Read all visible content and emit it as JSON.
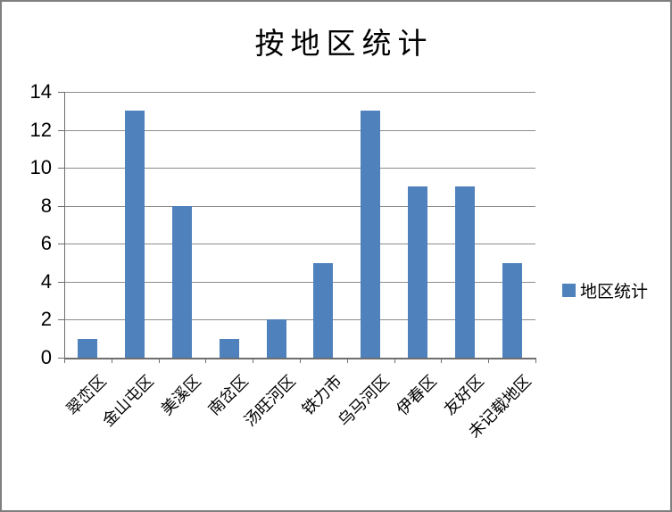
{
  "frame": {
    "background": "#FFFFFF",
    "border_color": "#7F7F7F"
  },
  "chart_data": {
    "type": "bar",
    "title": "按地区统计",
    "categories": [
      "翠峦区",
      "金山屯区",
      "美溪区",
      "南岔区",
      "汤旺河区",
      "铁力市",
      "乌马河区",
      "伊春区",
      "友好区",
      "未记载地区"
    ],
    "series": [
      {
        "name": "地区统计",
        "values": [
          1,
          13,
          8,
          1,
          2,
          5,
          13,
          9,
          9,
          5
        ]
      }
    ],
    "xlabel": "",
    "ylabel": "",
    "ylim": [
      0,
      14
    ],
    "yticks": [
      0,
      2,
      4,
      6,
      8,
      10,
      12,
      14
    ],
    "grid": "horizontal",
    "legend_position": "right",
    "x_label_rotation_deg": 45,
    "colors": {
      "bar": "#4F81BD",
      "gridline": "#8C8C8C",
      "axis": "#6E6E6E",
      "text": "#000000"
    }
  }
}
